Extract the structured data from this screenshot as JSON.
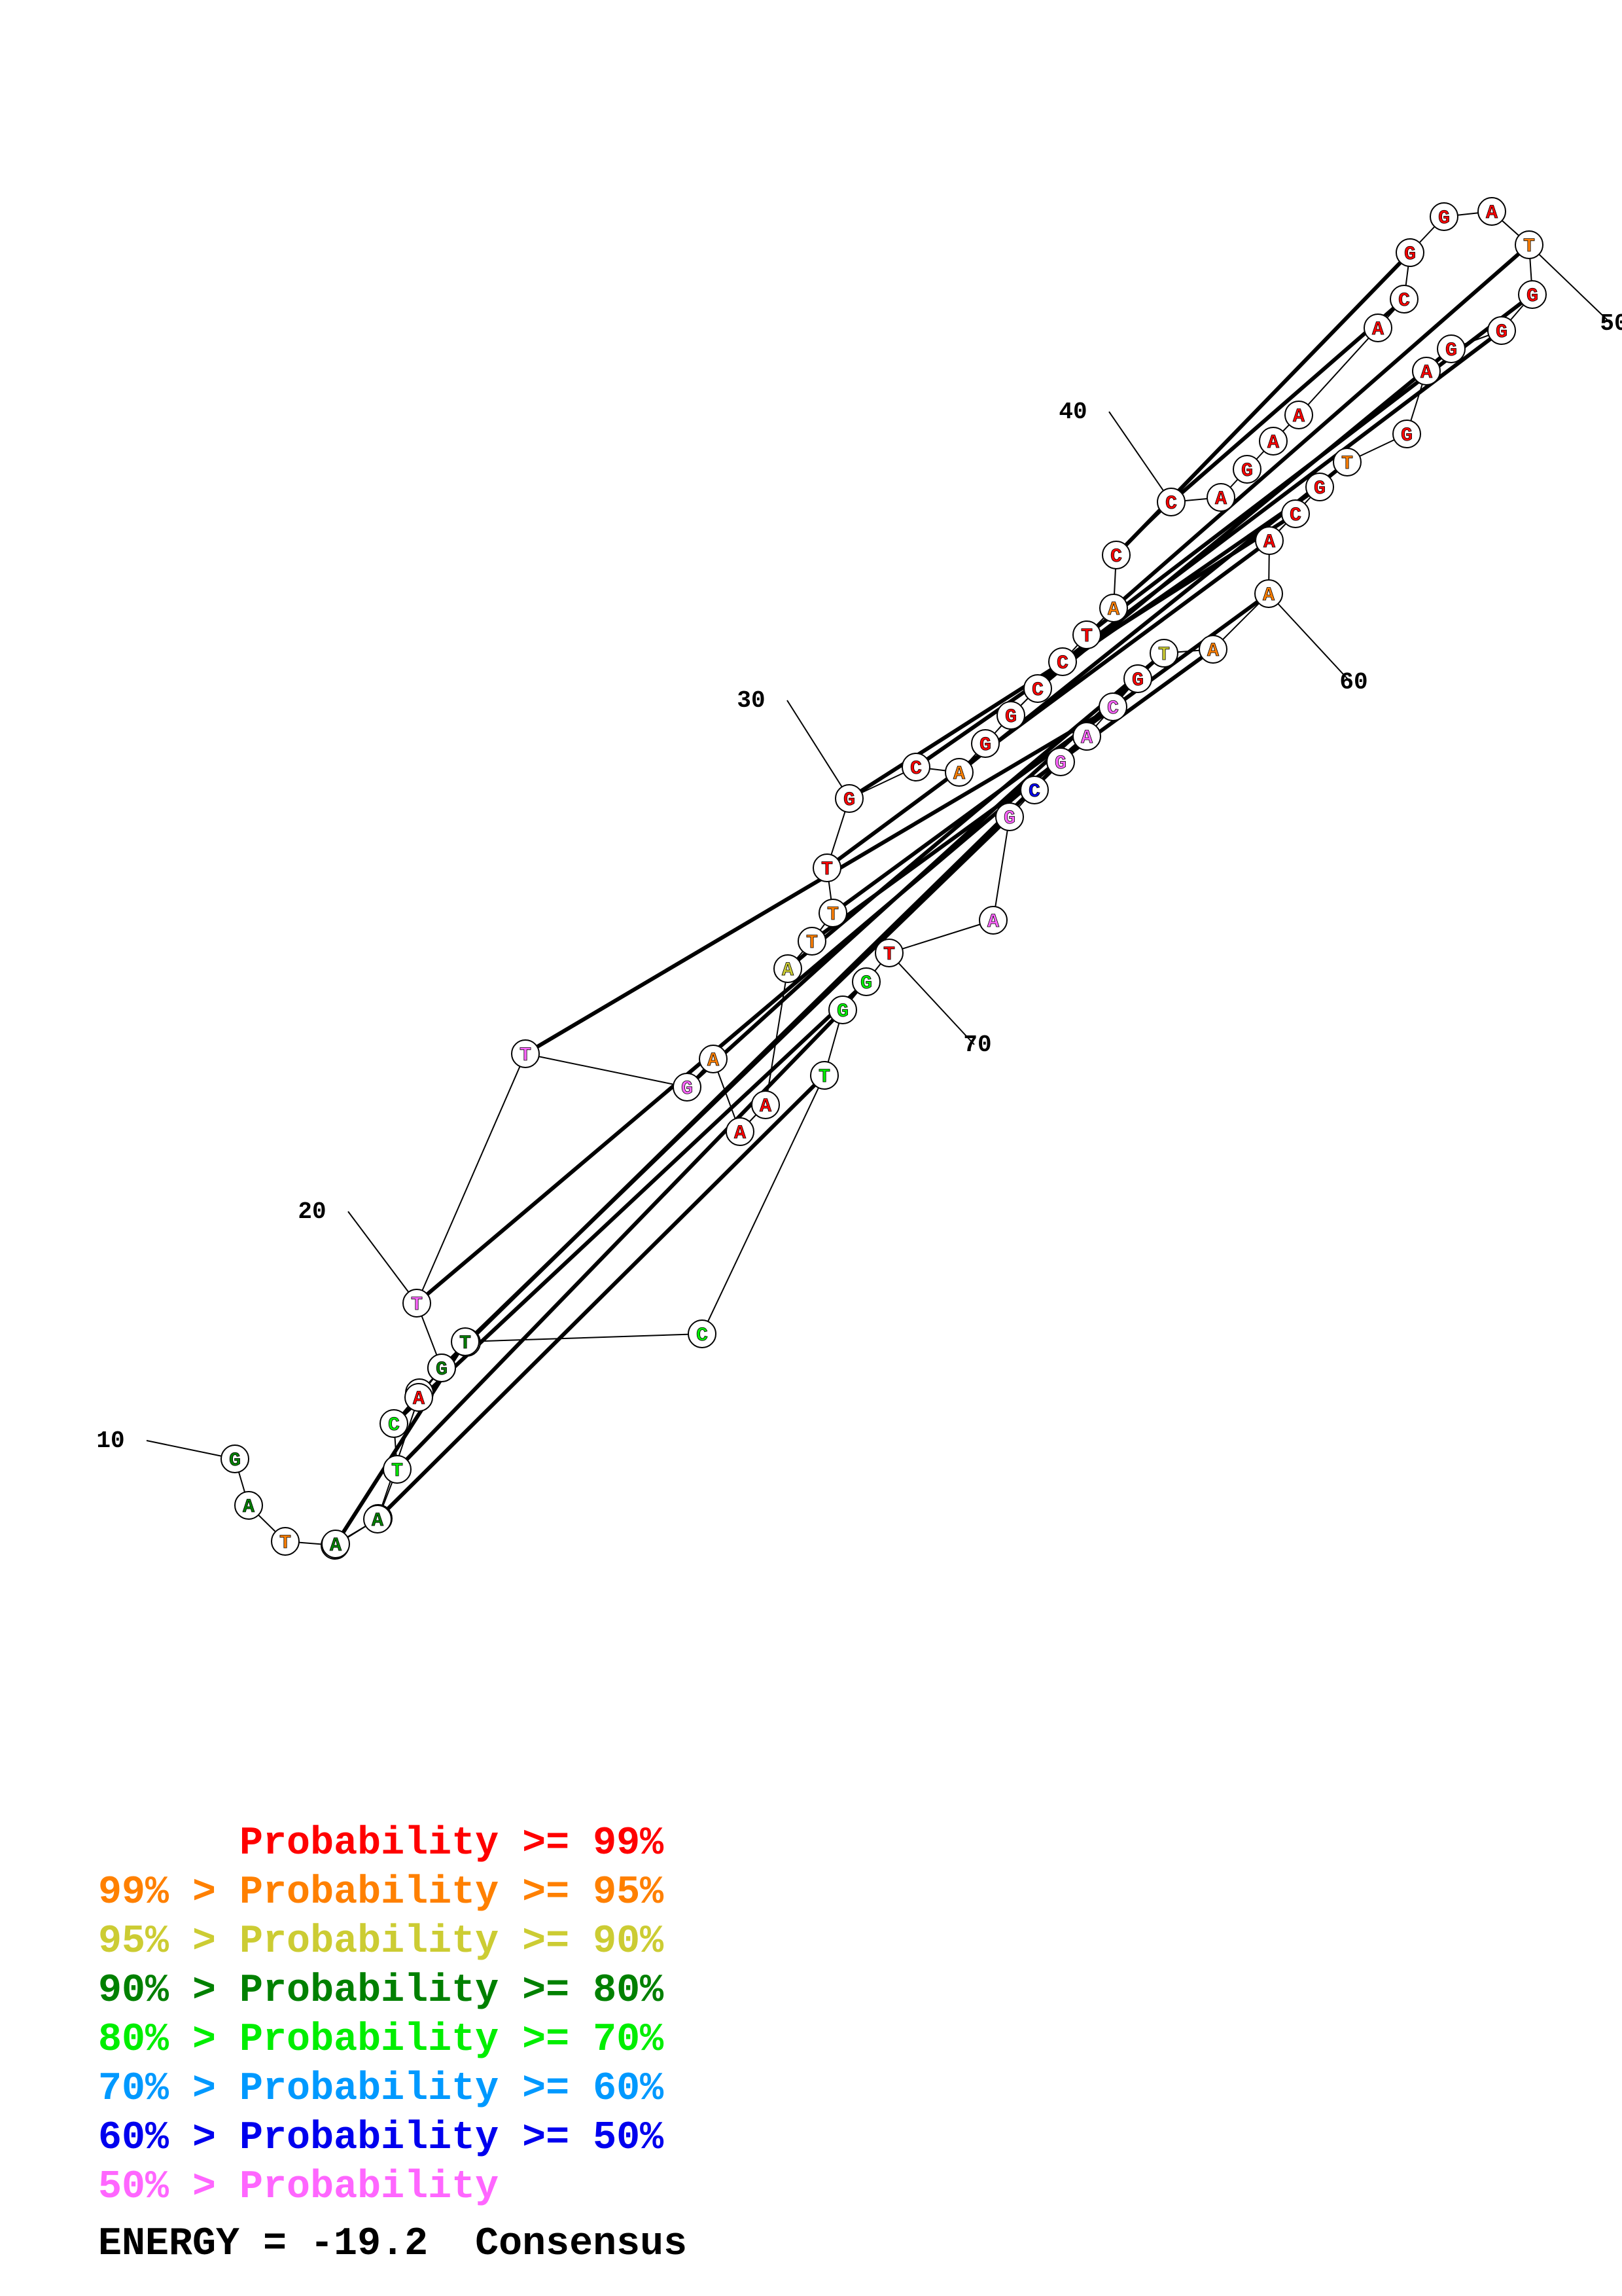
{
  "colors": {
    "p99": "#ff0000",
    "p95": "#ff8000",
    "p90": "#cccc33",
    "p80": "#008000",
    "p70": "#00ee00",
    "p60": "#0099ff",
    "p50": "#0000ee",
    "plt50": "#ff66ff"
  },
  "nucleotides": [
    {
      "n": 1,
      "base": "G",
      "cls": "p80"
    },
    {
      "n": 2,
      "base": "A",
      "cls": "p80"
    },
    {
      "n": 3,
      "base": "T",
      "cls": "p95"
    },
    {
      "n": 4,
      "base": "G",
      "cls": "p70"
    },
    {
      "n": 5,
      "base": "A",
      "cls": "p70"
    },
    {
      "n": 6,
      "base": "T",
      "cls": "p70"
    },
    {
      "n": 7,
      "base": "C",
      "cls": "p70"
    },
    {
      "n": 8,
      "base": "T",
      "cls": "p95"
    },
    {
      "n": 9,
      "base": "T",
      "cls": "plt50"
    },
    {
      "n": 10,
      "base": "C",
      "cls": "plt50"
    },
    {
      "n": 11,
      "base": "T",
      "cls": "plt50"
    },
    {
      "n": 12,
      "base": "T",
      "cls": "plt50"
    },
    {
      "n": 13,
      "base": "G",
      "cls": "plt50"
    },
    {
      "n": 14,
      "base": "A",
      "cls": "p95"
    },
    {
      "n": 15,
      "base": "A",
      "cls": "p99"
    },
    {
      "n": 16,
      "base": "A",
      "cls": "p99"
    },
    {
      "n": 17,
      "base": "A",
      "cls": "p90"
    },
    {
      "n": 18,
      "base": "T",
      "cls": "p95"
    },
    {
      "n": 19,
      "base": "T",
      "cls": "p95"
    },
    {
      "n": 20,
      "base": "T",
      "cls": "p99"
    },
    {
      "n": 21,
      "base": "G",
      "cls": "p99"
    },
    {
      "n": 22,
      "base": "C",
      "cls": "p99"
    },
    {
      "n": 23,
      "base": "A",
      "cls": "p95"
    },
    {
      "n": 24,
      "base": "G",
      "cls": "p99"
    },
    {
      "n": 25,
      "base": "G",
      "cls": "p99"
    },
    {
      "n": 26,
      "base": "C",
      "cls": "p99"
    },
    {
      "n": 27,
      "base": "C",
      "cls": "p99"
    },
    {
      "n": 28,
      "base": "T",
      "cls": "p99"
    },
    {
      "n": 29,
      "base": "A",
      "cls": "p95"
    },
    {
      "n": 30,
      "base": "C",
      "cls": "p99"
    },
    {
      "n": 31,
      "base": "C",
      "cls": "p99"
    },
    {
      "n": 32,
      "base": "A",
      "cls": "p99"
    },
    {
      "n": 33,
      "base": "G",
      "cls": "p99"
    },
    {
      "n": 34,
      "base": "A",
      "cls": "p99"
    },
    {
      "n": 35,
      "base": "A",
      "cls": "p99"
    },
    {
      "n": 36,
      "base": "A",
      "cls": "p99"
    },
    {
      "n": 37,
      "base": "C",
      "cls": "p99"
    },
    {
      "n": 38,
      "base": "G",
      "cls": "p99"
    },
    {
      "n": 39,
      "base": "G",
      "cls": "p99"
    },
    {
      "n": 40,
      "base": "A",
      "cls": "p99"
    },
    {
      "n": 41,
      "base": "T",
      "cls": "p95"
    },
    {
      "n": 42,
      "base": "G",
      "cls": "p99"
    },
    {
      "n": 43,
      "base": "G",
      "cls": "p99"
    },
    {
      "n": 44,
      "base": "G",
      "cls": "p99"
    },
    {
      "n": 45,
      "base": "A",
      "cls": "p99"
    },
    {
      "n": 46,
      "base": "G",
      "cls": "p99"
    },
    {
      "n": 47,
      "base": "T",
      "cls": "p95"
    },
    {
      "n": 48,
      "base": "G",
      "cls": "p99"
    },
    {
      "n": 49,
      "base": "C",
      "cls": "p99"
    },
    {
      "n": 50,
      "base": "A",
      "cls": "p99"
    },
    {
      "n": 51,
      "base": "A",
      "cls": "p95"
    },
    {
      "n": 52,
      "base": "A",
      "cls": "p95"
    },
    {
      "n": 53,
      "base": "T",
      "cls": "p90"
    },
    {
      "n": 54,
      "base": "G",
      "cls": "p99"
    },
    {
      "n": 55,
      "base": "C",
      "cls": "plt50"
    },
    {
      "n": 56,
      "base": "A",
      "cls": "plt50"
    },
    {
      "n": 57,
      "base": "G",
      "cls": "plt50"
    },
    {
      "n": 58,
      "base": "C",
      "cls": "p50"
    },
    {
      "n": 59,
      "base": "G",
      "cls": "plt50"
    },
    {
      "n": 60,
      "base": "A",
      "cls": "plt50"
    },
    {
      "n": 61,
      "base": "T",
      "cls": "p99"
    },
    {
      "n": 62,
      "base": "G",
      "cls": "p70"
    },
    {
      "n": 63,
      "base": "G",
      "cls": "p70"
    },
    {
      "n": 64,
      "base": "T",
      "cls": "p70"
    },
    {
      "n": 65,
      "base": "C",
      "cls": "p70"
    },
    {
      "n": 66,
      "base": "T",
      "cls": "p80"
    },
    {
      "n": 67,
      "base": "G",
      "cls": "p80"
    },
    {
      "n": 68,
      "base": "A",
      "cls": "p99"
    },
    {
      "n": 69,
      "base": "A",
      "cls": "p80"
    },
    {
      "n": 70,
      "base": "A",
      "cls": "p80"
    }
  ],
  "pairs": [
    [
      4,
      66
    ],
    [
      5,
      64
    ],
    [
      6,
      63
    ],
    [
      7,
      62
    ],
    [
      9,
      59
    ],
    [
      10,
      57
    ],
    [
      11,
      56
    ],
    [
      12,
      55
    ],
    [
      13,
      54
    ],
    [
      17,
      53
    ],
    [
      18,
      52
    ],
    [
      19,
      51
    ],
    [
      20,
      50
    ],
    [
      21,
      49
    ],
    [
      22,
      48
    ],
    [
      23,
      47
    ],
    [
      26,
      44
    ],
    [
      27,
      43
    ],
    [
      28,
      42
    ],
    [
      29,
      41
    ],
    [
      30,
      38
    ],
    [
      31,
      37
    ]
  ],
  "position_labels": [
    {
      "text": "10",
      "at": 1
    },
    {
      "text": "20",
      "at": 11
    },
    {
      "text": "30",
      "at": 21
    },
    {
      "text": "40",
      "at": 31
    },
    {
      "text": "50",
      "at": 41
    },
    {
      "text": "60",
      "at": 51
    },
    {
      "text": "70",
      "at": 61
    }
  ],
  "legend": [
    {
      "prefix": "",
      "label": "Probability >= 99%",
      "cls": "p99"
    },
    {
      "prefix": "99% > ",
      "label": "Probability >= 95%",
      "cls": "p95"
    },
    {
      "prefix": "95% > ",
      "label": "Probability >= 90%",
      "cls": "p90"
    },
    {
      "prefix": "90% > ",
      "label": "Probability >= 80%",
      "cls": "p80"
    },
    {
      "prefix": "80% > ",
      "label": "Probability >= 70%",
      "cls": "p70"
    },
    {
      "prefix": "70% > ",
      "label": "Probability >= 60%",
      "cls": "p60"
    },
    {
      "prefix": "60% > ",
      "label": "Probability >= 50%",
      "cls": "p50"
    },
    {
      "prefix": "50% > ",
      "label": "Probability",
      "cls": "plt50"
    }
  ],
  "energy_text": "ENERGY = -19.2  Consensus"
}
